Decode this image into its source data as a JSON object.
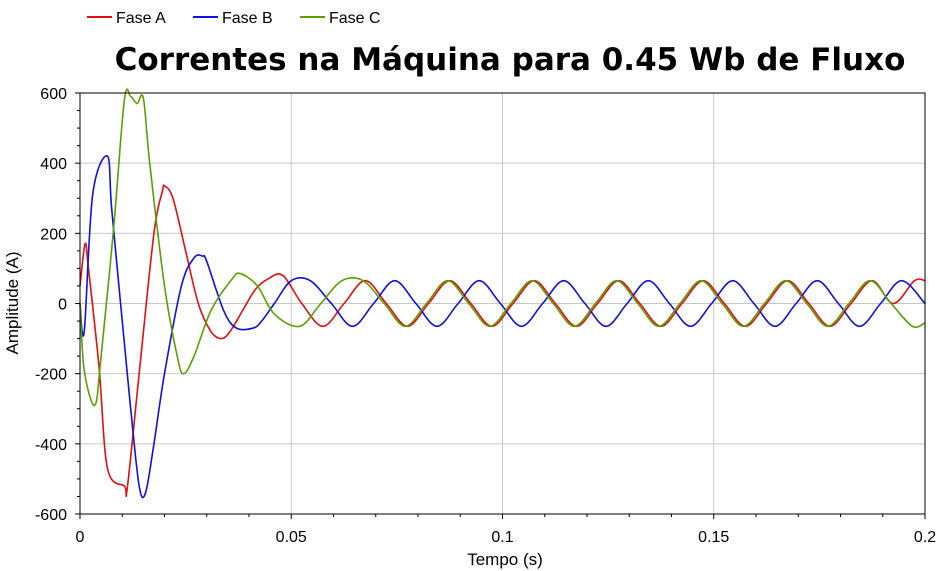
{
  "chart_data": {
    "type": "line",
    "title": "Correntes na Máquina para 0.45 Wb de Fluxo",
    "xlabel": "Tempo (s)",
    "ylabel": "Amplitude (A)",
    "xlim": [
      0,
      0.2
    ],
    "ylim": [
      -600,
      600
    ],
    "xticks": [
      0,
      0.05,
      0.1,
      0.15,
      0.2
    ],
    "xtick_labels": [
      "0",
      "0.05",
      "0.1",
      "0.15",
      "0.2"
    ],
    "yticks": [
      -600,
      -400,
      -200,
      0,
      200,
      400,
      600
    ],
    "ytick_labels": [
      "-600",
      "-400",
      "-200",
      "0",
      "200",
      "400",
      "600"
    ],
    "grid": true,
    "legend_position": "top-left",
    "series": [
      {
        "name": "Fase A",
        "color": "#e01010",
        "x": [
          0,
          0.0012,
          0.002,
          0.0045,
          0.0065,
          0.0105,
          0.0112,
          0.014,
          0.0175,
          0.0195,
          0.02,
          0.022,
          0.025,
          0.028,
          0.031,
          0.0335,
          0.0355,
          0.0385,
          0.0415,
          0.0445,
          0.048,
          0.0525,
          0.0575,
          0.0625,
          0.0675,
          0.0725,
          0.0775,
          0.0825,
          0.0875,
          0.0925,
          0.0975,
          0.1025,
          0.1075,
          0.1125,
          0.1175,
          0.1225,
          0.1275,
          0.1325,
          0.1375,
          0.1425,
          0.1475,
          0.1525,
          0.1575,
          0.1625,
          0.1675,
          0.1725,
          0.1775,
          0.1825,
          0.1875,
          0.1925,
          0.1975,
          0.2
        ],
        "y": [
          50,
          170,
          100,
          -180,
          -470,
          -520,
          -525,
          -200,
          200,
          320,
          335,
          300,
          150,
          0,
          -80,
          -100,
          -80,
          -20,
          40,
          70,
          80,
          0,
          -65,
          0,
          65,
          0,
          -65,
          0,
          65,
          0,
          -65,
          0,
          65,
          0,
          -65,
          0,
          65,
          0,
          -65,
          0,
          65,
          0,
          -65,
          0,
          65,
          0,
          -65,
          0,
          65,
          0,
          65,
          65
        ]
      },
      {
        "name": "Fase B",
        "color": "#1010e0",
        "x": [
          0,
          0.001,
          0.003,
          0.0065,
          0.0075,
          0.01,
          0.012,
          0.014,
          0.0155,
          0.0175,
          0.02,
          0.024,
          0.027,
          0.029,
          0.03,
          0.034,
          0.037,
          0.041,
          0.043,
          0.046,
          0.05,
          0.0545,
          0.0595,
          0.0645,
          0.0695,
          0.0745,
          0.0795,
          0.0845,
          0.0895,
          0.0945,
          0.0995,
          0.1045,
          0.1095,
          0.1145,
          0.1195,
          0.1245,
          0.1295,
          0.1345,
          0.1395,
          0.1445,
          0.1495,
          0.1545,
          0.1595,
          0.1645,
          0.1695,
          0.1745,
          0.1795,
          0.1845,
          0.1895,
          0.1945,
          0.2
        ],
        "y": [
          0,
          -80,
          310,
          420,
          270,
          -50,
          -300,
          -520,
          -540,
          -400,
          -200,
          50,
          130,
          135,
          120,
          -20,
          -70,
          -70,
          -50,
          0,
          65,
          65,
          0,
          -65,
          0,
          65,
          0,
          -65,
          0,
          65,
          0,
          -65,
          0,
          65,
          0,
          -65,
          0,
          65,
          0,
          -65,
          0,
          65,
          0,
          -65,
          0,
          65,
          0,
          -65,
          0,
          65,
          0
        ]
      },
      {
        "name": "Fase C",
        "color": "#5aa000",
        "x": [
          0,
          0.001,
          0.0035,
          0.005,
          0.008,
          0.0105,
          0.012,
          0.0135,
          0.015,
          0.0165,
          0.02,
          0.023,
          0.0245,
          0.027,
          0.031,
          0.036,
          0.038,
          0.042,
          0.046,
          0.052,
          0.057,
          0.062,
          0.067,
          0.072,
          0.077,
          0.082,
          0.087,
          0.092,
          0.097,
          0.102,
          0.107,
          0.112,
          0.117,
          0.122,
          0.127,
          0.132,
          0.137,
          0.142,
          0.147,
          0.152,
          0.157,
          0.162,
          0.167,
          0.172,
          0.177,
          0.182,
          0.187,
          0.192,
          0.197,
          0.2
        ],
        "y": [
          0,
          -190,
          -290,
          -150,
          220,
          580,
          590,
          570,
          585,
          400,
          50,
          -150,
          -200,
          -150,
          -20,
          70,
          85,
          50,
          -30,
          -65,
          0,
          65,
          65,
          0,
          -65,
          0,
          65,
          0,
          -65,
          0,
          65,
          0,
          -65,
          0,
          65,
          0,
          -65,
          0,
          65,
          0,
          -65,
          0,
          65,
          0,
          -65,
          0,
          65,
          0,
          -65,
          -55
        ]
      }
    ]
  }
}
